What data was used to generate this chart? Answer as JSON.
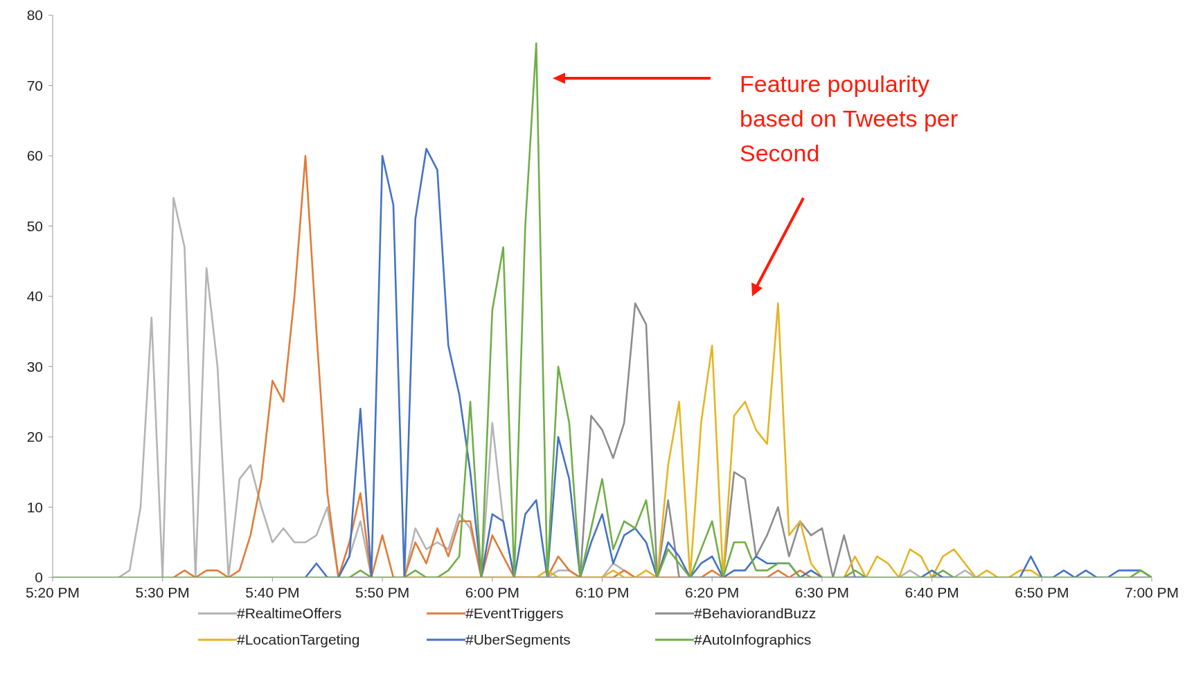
{
  "chart_data": {
    "type": "line",
    "categories": [
      "5:20 PM",
      null,
      null,
      null,
      null,
      null,
      null,
      null,
      null,
      null,
      "5:30 PM",
      null,
      null,
      null,
      null,
      null,
      null,
      null,
      null,
      null,
      "5:40 PM",
      null,
      null,
      null,
      null,
      null,
      null,
      null,
      null,
      null,
      "5:50 PM",
      null,
      null,
      null,
      null,
      null,
      null,
      null,
      null,
      null,
      "6:00 PM",
      null,
      null,
      null,
      null,
      null,
      null,
      null,
      null,
      null,
      "6:10 PM",
      null,
      null,
      null,
      null,
      null,
      null,
      null,
      null,
      null,
      "6:20 PM",
      null,
      null,
      null,
      null,
      null,
      null,
      null,
      null,
      null,
      "6:30 PM",
      null,
      null,
      null,
      null,
      null,
      null,
      null,
      null,
      null,
      "6:40 PM",
      null,
      null,
      null,
      null,
      null,
      null,
      null,
      null,
      null,
      "6:50 PM",
      null,
      null,
      null,
      null,
      null,
      null,
      null,
      null,
      null,
      "7:00 PM"
    ],
    "series": [
      {
        "name": "#RealtimeOffers",
        "color": "#b4b4b4",
        "values": [
          null,
          null,
          null,
          null,
          null,
          null,
          0,
          1,
          10,
          37,
          0,
          54,
          47,
          0,
          44,
          30,
          0,
          14,
          16,
          10,
          5,
          7,
          5,
          5,
          6,
          10,
          0,
          3,
          8,
          0,
          null,
          null,
          0,
          7,
          4,
          5,
          4,
          9,
          7,
          0,
          22,
          8,
          0,
          0,
          0,
          0,
          1,
          1,
          0,
          0,
          0,
          2,
          1,
          0,
          0,
          0,
          0,
          0,
          0,
          0,
          0,
          0,
          0,
          0,
          0,
          0,
          0,
          0,
          0,
          null,
          null,
          null,
          0,
          0,
          0,
          null,
          null,
          0,
          1,
          0,
          0,
          0,
          0,
          1,
          0,
          null,
          null,
          null,
          null,
          null,
          null,
          null,
          null,
          null,
          null,
          null,
          null,
          null,
          0,
          0,
          0
        ]
      },
      {
        "name": "#EventTriggers",
        "color": "#e07b39",
        "values": [
          null,
          null,
          null,
          null,
          null,
          null,
          null,
          null,
          null,
          null,
          null,
          0,
          1,
          0,
          1,
          1,
          0,
          1,
          6,
          14,
          28,
          25,
          40,
          60,
          35,
          12,
          0,
          5,
          12,
          0,
          6,
          0,
          0,
          5,
          2,
          7,
          3,
          8,
          8,
          0,
          6,
          3,
          0,
          0,
          0,
          0,
          3,
          1,
          0,
          0,
          0,
          0,
          1,
          0,
          0,
          0,
          0,
          0,
          0,
          0,
          1,
          0,
          0,
          0,
          0,
          0,
          1,
          0,
          1,
          0,
          null,
          null,
          0,
          0,
          null,
          null,
          null,
          null,
          null,
          null,
          null,
          null,
          null,
          null,
          null,
          null,
          null,
          null,
          null,
          null,
          null,
          null,
          null,
          null,
          null,
          null,
          null,
          null,
          null,
          null,
          null
        ]
      },
      {
        "name": "#BehaviorandBuzz",
        "color": "#8c8c8c",
        "values": [
          null,
          null,
          null,
          null,
          null,
          null,
          null,
          null,
          null,
          null,
          null,
          null,
          null,
          null,
          null,
          null,
          null,
          null,
          null,
          null,
          null,
          null,
          null,
          null,
          null,
          null,
          null,
          0,
          0,
          0,
          null,
          null,
          0,
          0,
          0,
          0,
          0,
          0,
          0,
          0,
          0,
          0,
          0,
          0,
          0,
          0,
          0,
          0,
          0,
          23,
          21,
          17,
          22,
          39,
          36,
          0,
          11,
          0,
          0,
          0,
          0,
          0,
          15,
          14,
          3,
          6,
          10,
          3,
          8,
          6,
          7,
          0,
          6,
          0,
          0,
          null,
          null,
          null,
          null,
          null,
          0,
          0,
          0,
          null,
          null,
          null,
          null,
          null,
          null,
          null,
          null,
          null,
          null,
          null,
          null,
          null,
          null,
          null,
          0,
          0,
          0
        ]
      },
      {
        "name": "#LocationTargeting",
        "color": "#e6b422",
        "values": [
          null,
          null,
          null,
          null,
          null,
          null,
          null,
          null,
          null,
          null,
          null,
          null,
          null,
          null,
          null,
          null,
          null,
          null,
          null,
          null,
          null,
          null,
          null,
          null,
          null,
          null,
          null,
          null,
          null,
          null,
          null,
          null,
          0,
          0,
          0,
          0,
          0,
          0,
          0,
          0,
          0,
          0,
          0,
          0,
          0,
          1,
          0,
          0,
          0,
          0,
          0,
          1,
          0,
          0,
          1,
          0,
          16,
          25,
          0,
          22,
          33,
          0,
          23,
          25,
          21,
          19,
          39,
          6,
          8,
          2,
          0,
          null,
          0,
          3,
          0,
          3,
          2,
          0,
          4,
          3,
          0,
          3,
          4,
          2,
          0,
          1,
          0,
          0,
          1,
          1,
          0,
          null,
          null,
          null,
          null,
          null,
          null,
          null,
          null,
          null,
          null
        ]
      },
      {
        "name": "#UberSegments",
        "color": "#4472c4",
        "values": [
          null,
          null,
          null,
          null,
          null,
          null,
          null,
          null,
          null,
          null,
          null,
          null,
          null,
          null,
          null,
          null,
          null,
          null,
          null,
          null,
          null,
          null,
          null,
          0,
          2,
          0,
          0,
          3,
          24,
          0,
          60,
          53,
          0,
          51,
          61,
          58,
          33,
          26,
          15,
          0,
          9,
          8,
          0,
          9,
          11,
          0,
          20,
          14,
          0,
          5,
          9,
          2,
          6,
          7,
          5,
          0,
          5,
          3,
          0,
          2,
          3,
          0,
          1,
          1,
          3,
          2,
          2,
          2,
          0,
          1,
          0,
          null,
          0,
          0,
          0,
          null,
          null,
          null,
          null,
          0,
          1,
          0,
          0,
          null,
          null,
          null,
          null,
          null,
          0,
          3,
          0,
          0,
          1,
          0,
          1,
          0,
          0,
          1,
          1,
          1,
          0
        ]
      },
      {
        "name": "#AutoInfographics",
        "color": "#70ad47",
        "values": [
          0,
          0,
          0,
          0,
          0,
          0,
          0,
          0,
          0,
          0,
          0,
          0,
          0,
          0,
          0,
          0,
          0,
          0,
          0,
          0,
          0,
          0,
          0,
          0,
          0,
          0,
          0,
          0,
          1,
          0,
          0,
          0,
          0,
          1,
          0,
          0,
          1,
          3,
          25,
          0,
          38,
          47,
          0,
          50,
          76,
          0,
          30,
          22,
          0,
          7,
          14,
          4,
          8,
          7,
          11,
          0,
          4,
          2,
          0,
          4,
          8,
          0,
          5,
          5,
          1,
          1,
          2,
          2,
          0,
          0,
          0,
          0,
          0,
          1,
          0,
          0,
          0,
          0,
          0,
          0,
          0,
          1,
          0,
          0,
          0,
          0,
          0,
          0,
          0,
          0,
          0,
          0,
          0,
          0,
          0,
          0,
          0,
          0,
          0,
          1,
          0
        ]
      }
    ],
    "ylim": [
      0,
      80
    ],
    "yticks": [
      0,
      10,
      20,
      30,
      40,
      50,
      60,
      70,
      80
    ],
    "legend": "bottom",
    "marker": "none",
    "line_style": "solid",
    "annotations": [
      "Feature popularity based on Tweets per Second"
    ]
  }
}
